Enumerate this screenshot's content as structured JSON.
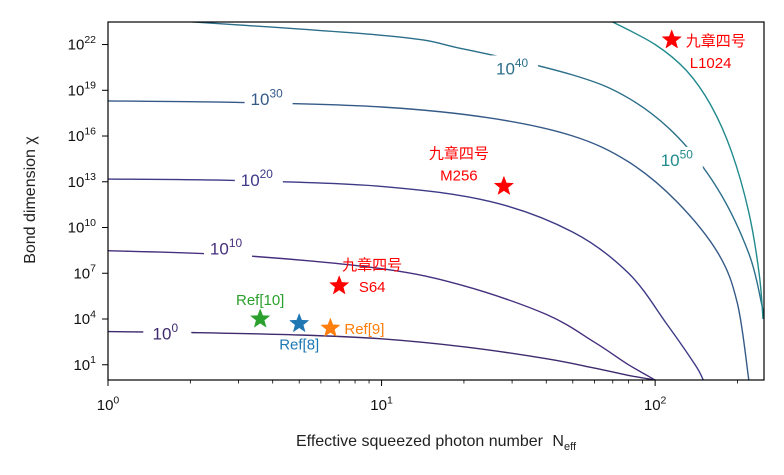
{
  "chart_data": {
    "type": "line",
    "xlabel": "Effective squeezed photon number",
    "xlabel_sub": "eff",
    "xlabel_base": "N",
    "ylabel": "Bond dimension χ",
    "x_scale": "log",
    "y_scale": "log",
    "xlim": [
      1,
      250
    ],
    "ylim": [
      1,
      3e+23
    ],
    "x_ticks": [
      {
        "value": 1,
        "base": "10",
        "exp": "0"
      },
      {
        "value": 10,
        "base": "10",
        "exp": "1"
      },
      {
        "value": 100,
        "base": "10",
        "exp": "2"
      }
    ],
    "y_ticks": [
      {
        "value": 10,
        "base": "10",
        "exp": "1"
      },
      {
        "value": 10000.0,
        "base": "10",
        "exp": "4"
      },
      {
        "value": 10000000.0,
        "base": "10",
        "exp": "7"
      },
      {
        "value": 10000000000.0,
        "base": "10",
        "exp": "10"
      },
      {
        "value": 10000000000000.0,
        "base": "10",
        "exp": "13"
      },
      {
        "value": 1e+16,
        "base": "10",
        "exp": "16"
      },
      {
        "value": 1e+19,
        "base": "10",
        "exp": "19"
      },
      {
        "value": 1e+22,
        "base": "10",
        "exp": "22"
      }
    ],
    "contours": [
      {
        "base": "10",
        "exp": "0",
        "color": "#3f2a6e",
        "label_x": 1.62,
        "label_y": 800,
        "points": [
          [
            1,
            1500
          ],
          [
            2,
            1300
          ],
          [
            5,
            900
          ],
          [
            10,
            500
          ],
          [
            20,
            150
          ],
          [
            40,
            25
          ],
          [
            60,
            6
          ],
          [
            80,
            2
          ],
          [
            100,
            1
          ]
        ]
      },
      {
        "base": "10",
        "exp": "10",
        "color": "#462f7e",
        "label_x": 2.7,
        "label_y": 300000000.0,
        "points": [
          [
            1,
            300000000.0
          ],
          [
            3,
            150000000.0
          ],
          [
            10,
            20000000.0
          ],
          [
            20,
            1500000.0
          ],
          [
            40,
            20000.0
          ],
          [
            60,
            300
          ],
          [
            80,
            10
          ],
          [
            100,
            1
          ]
        ]
      },
      {
        "base": "10",
        "exp": "20",
        "color": "#3d3a86",
        "label_x": 3.5,
        "label_y": 10000000000000.0,
        "points": [
          [
            1,
            15000000000000.0
          ],
          [
            3,
            12000000000000.0
          ],
          [
            10,
            5000000000000.0
          ],
          [
            25,
            500000000000.0
          ],
          [
            50,
            5000000000.0
          ],
          [
            80,
            10000000.0
          ],
          [
            110,
            5000.0
          ],
          [
            140,
            10
          ],
          [
            150,
            1
          ]
        ]
      },
      {
        "base": "10",
        "exp": "30",
        "color": "#355a88",
        "label_x": 3.8,
        "label_y": 2e+18,
        "points": [
          [
            1,
            2e+18
          ],
          [
            3,
            1.6e+18
          ],
          [
            10,
            8e+17
          ],
          [
            25,
            1.5e+17
          ],
          [
            50,
            1e+16
          ],
          [
            80,
            200000000000000.0
          ],
          [
            120,
            500000000000.0
          ],
          [
            170,
            200000000.0
          ],
          [
            200,
            100000.0
          ],
          [
            220,
            1
          ]
        ]
      },
      {
        "base": "10",
        "exp": "40",
        "color": "#2c6f8a",
        "label_x": 30,
        "label_y": 2e+20,
        "points": [
          [
            1,
            7e+23
          ],
          [
            10,
            4e+22
          ],
          [
            20,
            5e+21
          ],
          [
            50,
            1e+20
          ],
          [
            80,
            3e+18
          ],
          [
            120,
            1e+16
          ],
          [
            170,
            3000000000000.0
          ],
          [
            220,
            200000000.0
          ],
          [
            245,
            100000.0
          ],
          [
            250,
            10000.0
          ]
        ]
      },
      {
        "base": "10",
        "exp": "50",
        "color": "#218a8d",
        "label_x": 120,
        "label_y": 200000000000000.0,
        "points": [
          [
            70,
            3e+23
          ],
          [
            100,
            1e+22
          ],
          [
            130,
            2e+20
          ],
          [
            160,
            1e+18
          ],
          [
            190,
            1000000000000000.0
          ],
          [
            220,
            100000000000.0
          ],
          [
            240,
            10000000.0
          ],
          [
            248,
            10000.0
          ]
        ]
      }
    ],
    "points": [
      {
        "x": 115,
        "y": 2e+22,
        "color": "#ff0000",
        "labels": [
          "九章四号",
          "L1024"
        ],
        "label_color": "#ff0000",
        "label_anchor": "right"
      },
      {
        "x": 28,
        "y": 5000000000000.0,
        "color": "#ff0000",
        "labels": [
          "九章四号",
          "M256"
        ],
        "label_color": "#ff0000",
        "label_anchor": "above-left"
      },
      {
        "x": 7,
        "y": 1500000.0,
        "color": "#ff0000",
        "labels": [
          "九章四号",
          "S64"
        ],
        "label_color": "#ff0000",
        "label_anchor": "above-right"
      },
      {
        "x": 3.6,
        "y": 10000.0,
        "color": "#2ca02c",
        "labels": [
          "Ref[10]"
        ],
        "label_color": "#2ca02c",
        "label_anchor": "above"
      },
      {
        "x": 5,
        "y": 5000.0,
        "color": "#1f77b4",
        "labels": [
          "Ref[8]"
        ],
        "label_color": "#1f77b4",
        "label_anchor": "below"
      },
      {
        "x": 6.5,
        "y": 2500.0,
        "color": "#ff7f0e",
        "labels": [
          "Ref[9]"
        ],
        "label_color": "#ff7f0e",
        "label_anchor": "right"
      }
    ]
  }
}
